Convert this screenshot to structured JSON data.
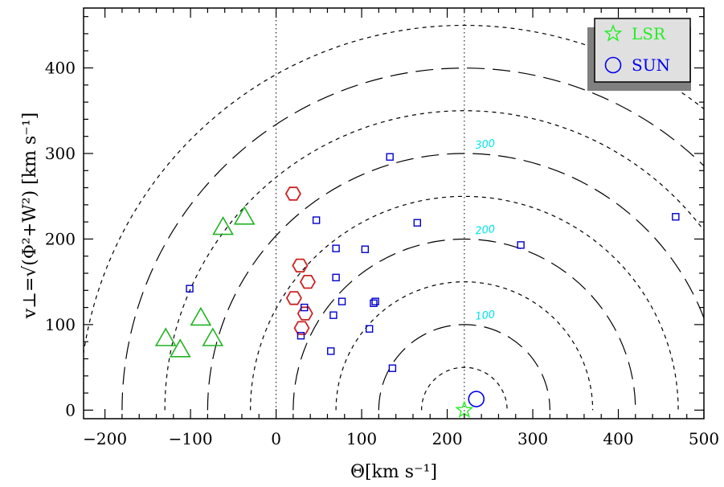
{
  "chart_data": {
    "type": "scatter",
    "xlabel": "Θ[km s⁻¹]",
    "ylabel": "v⊥=√(Φ²+W²) [km s⁻¹]",
    "xlim": [
      -225,
      500
    ],
    "ylim": [
      -10,
      470
    ],
    "x_ticks": [
      -200,
      -100,
      0,
      100,
      200,
      300,
      400,
      500
    ],
    "y_ticks": [
      0,
      100,
      200,
      300,
      400
    ],
    "grid": false,
    "legend_position": "top-right",
    "vertical_lines": [
      0,
      220
    ],
    "contours": {
      "center_x": 220,
      "radii": [
        50,
        100,
        150,
        200,
        250,
        300,
        350,
        400,
        450
      ],
      "labels": [
        {
          "text": "100",
          "value": 100
        },
        {
          "text": "200",
          "value": 200
        },
        {
          "text": "300",
          "value": 300
        }
      ]
    },
    "series": [
      {
        "marker": "triangle",
        "color": "#22b322",
        "points": [
          [
            -37,
            225
          ],
          [
            -62,
            213
          ],
          [
            -88,
            107
          ],
          [
            -129,
            83
          ],
          [
            -112,
            70
          ],
          [
            -74,
            83
          ]
        ]
      },
      {
        "marker": "hexagon",
        "color": "#cc2222",
        "points": [
          [
            20,
            253
          ],
          [
            28,
            169
          ],
          [
            37,
            150
          ],
          [
            21,
            131
          ],
          [
            34,
            113
          ],
          [
            30,
            96
          ]
        ]
      },
      {
        "marker": "square",
        "color": "#0000cc",
        "points": [
          [
            133,
            296
          ],
          [
            165,
            219
          ],
          [
            47,
            222
          ],
          [
            70,
            189
          ],
          [
            104,
            188
          ],
          [
            70,
            155
          ],
          [
            -101,
            142
          ],
          [
            77,
            127
          ],
          [
            116,
            127
          ],
          [
            114,
            125
          ],
          [
            33,
            120
          ],
          [
            67,
            111
          ],
          [
            109,
            95
          ],
          [
            29,
            87
          ],
          [
            64,
            69
          ],
          [
            136,
            49
          ],
          [
            286,
            193
          ],
          [
            467,
            226
          ]
        ]
      },
      {
        "name": "LSR",
        "marker": "star",
        "color": "#22ee22",
        "points": [
          [
            220,
            0
          ]
        ]
      },
      {
        "name": "SUN",
        "marker": "circle",
        "color": "#0000ee",
        "points": [
          [
            234,
            13
          ]
        ]
      }
    ]
  },
  "legend": {
    "items": [
      {
        "label": "LSR",
        "color": "#22ee22",
        "icon": "star-icon"
      },
      {
        "label": "SUN",
        "color": "#0000ee",
        "icon": "circle-icon"
      }
    ],
    "shadow_color": "#808080",
    "box_color": "#e0e0e0"
  }
}
